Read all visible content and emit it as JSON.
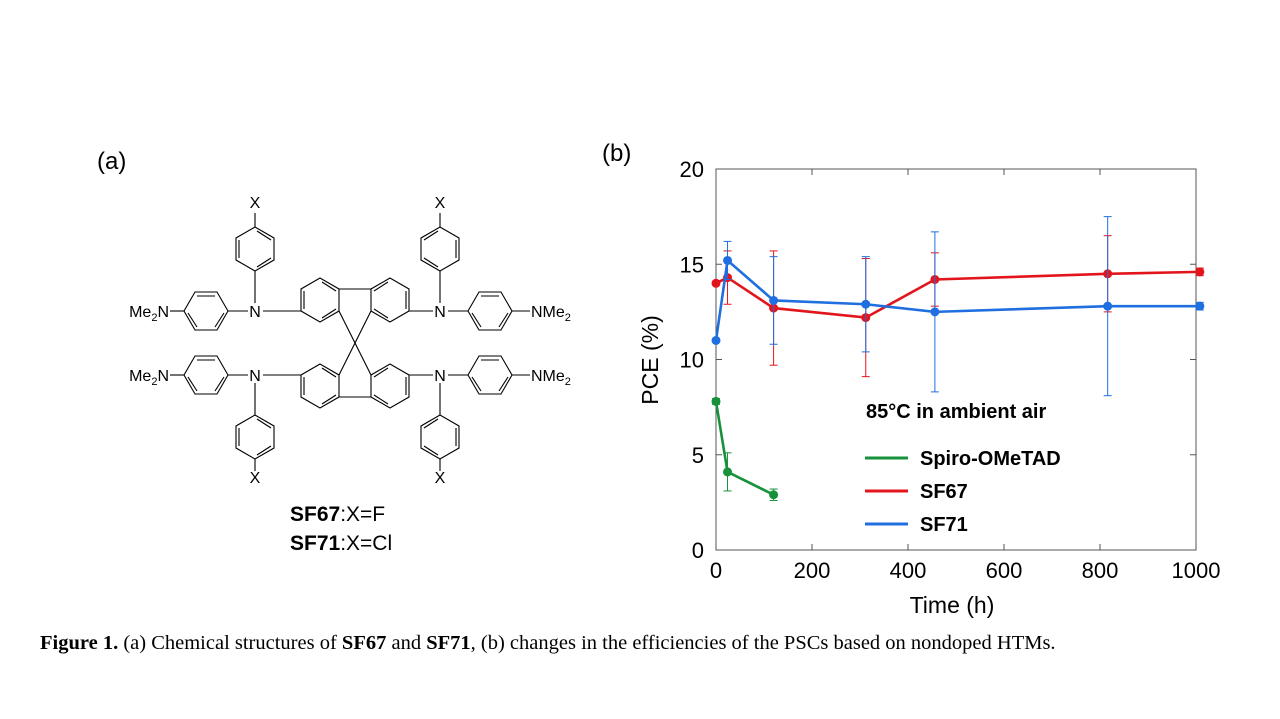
{
  "panel_a": {
    "label": "(a)",
    "substituents": {
      "x": "X",
      "me2n": "Me",
      "me2n_sub": "2",
      "me2n_n": "N",
      "n": "N",
      "nme": "NMe",
      "nme_sub": "2"
    },
    "compounds": [
      {
        "name": "SF67",
        "rest": ":X=F"
      },
      {
        "name": "SF71",
        "rest": ":X=Cl"
      }
    ]
  },
  "panel_b": {
    "label": "(b)",
    "annotation": "85°C in ambient air"
  },
  "chart_data": {
    "type": "line",
    "xlabel": "Time (h)",
    "ylabel": "PCE (%)",
    "xlim": [
      0,
      1000
    ],
    "ylim": [
      0,
      20
    ],
    "xticks": [
      0,
      200,
      400,
      600,
      800,
      1000
    ],
    "yticks": [
      0,
      5,
      10,
      15,
      20
    ],
    "grid": false,
    "legend_position": "inside-bottom",
    "series": [
      {
        "name": "Spiro-OMeTAD",
        "color": "#17913a",
        "x": [
          0,
          24,
          120
        ],
        "y": [
          7.8,
          4.1,
          2.9
        ],
        "err": [
          0.15,
          1.0,
          0.3
        ]
      },
      {
        "name": "SF67",
        "color": "#e3151c",
        "x": [
          0,
          24,
          120,
          312,
          456,
          816,
          1008
        ],
        "y": [
          14.0,
          14.3,
          12.7,
          12.2,
          14.2,
          14.5,
          14.6
        ],
        "err": [
          0,
          1.4,
          3.0,
          3.1,
          1.4,
          2.0,
          0.2
        ]
      },
      {
        "name": "SF71",
        "color": "#1f6fe0",
        "x": [
          0,
          24,
          120,
          312,
          456,
          816,
          1008
        ],
        "y": [
          11.0,
          15.2,
          13.1,
          12.9,
          12.5,
          12.8,
          12.8
        ],
        "err": [
          0,
          1.0,
          2.3,
          2.5,
          4.2,
          4.7,
          0.2
        ]
      }
    ]
  },
  "caption": {
    "lead": "Figure 1.",
    "part1": " (a) Chemical structures of ",
    "c1": "SF67",
    "part2": " and ",
    "c2": "SF71",
    "part3": ", (b) changes in the efficiencies of the PSCs based on nondoped HTMs."
  }
}
